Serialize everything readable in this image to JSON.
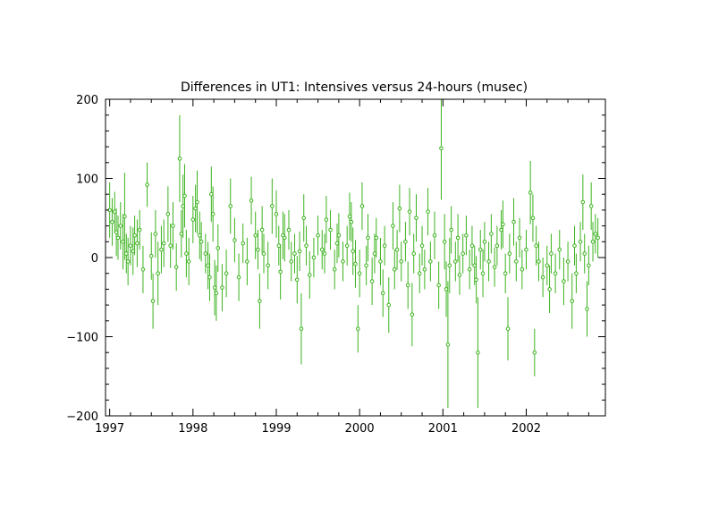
{
  "chart_data": {
    "type": "scatter",
    "title": "Differences in UT1: Intensives versus 24-hours (musec)",
    "xlabel": "",
    "ylabel": "",
    "xlim": [
      1996.95,
      2002.95
    ],
    "ylim": [
      -200,
      200
    ],
    "x_ticks": [
      1997,
      1998,
      1999,
      2000,
      2001,
      2002
    ],
    "y_ticks": [
      -200,
      -100,
      0,
      100,
      200
    ],
    "grid": false,
    "legend": "none",
    "series_color": "#3cb31e",
    "series": [
      {
        "error_bars": true,
        "points": [
          [
            1997.0,
            60,
            35
          ],
          [
            1997.03,
            45,
            30
          ],
          [
            1997.06,
            58,
            25
          ],
          [
            1997.08,
            32,
            30
          ],
          [
            1997.1,
            25,
            28
          ],
          [
            1997.13,
            40,
            30
          ],
          [
            1997.16,
            20,
            35
          ],
          [
            1997.18,
            52,
            55
          ],
          [
            1997.2,
            5,
            25
          ],
          [
            1997.22,
            -5,
            30
          ],
          [
            1997.25,
            15,
            25
          ],
          [
            1997.28,
            8,
            30
          ],
          [
            1997.3,
            28,
            25
          ],
          [
            1997.33,
            18,
            30
          ],
          [
            1997.36,
            35,
            25
          ],
          [
            1997.4,
            -15,
            30
          ],
          [
            1997.45,
            92,
            28
          ],
          [
            1997.5,
            2,
            30
          ],
          [
            1997.52,
            -55,
            35
          ],
          [
            1997.55,
            30,
            30
          ],
          [
            1997.58,
            -20,
            40
          ],
          [
            1997.62,
            10,
            30
          ],
          [
            1997.65,
            18,
            30
          ],
          [
            1997.7,
            55,
            35
          ],
          [
            1997.73,
            15,
            28
          ],
          [
            1997.76,
            40,
            30
          ],
          [
            1997.8,
            -12,
            30
          ],
          [
            1997.84,
            125,
            55
          ],
          [
            1997.86,
            30,
            30
          ],
          [
            1997.88,
            65,
            40
          ],
          [
            1997.9,
            78,
            40
          ],
          [
            1997.92,
            5,
            30
          ],
          [
            1997.95,
            -5,
            30
          ],
          [
            1998.0,
            48,
            30
          ],
          [
            1998.03,
            62,
            30
          ],
          [
            1998.05,
            70,
            40
          ],
          [
            1998.08,
            28,
            30
          ],
          [
            1998.1,
            20,
            25
          ],
          [
            1998.15,
            5,
            25
          ],
          [
            1998.18,
            -10,
            30
          ],
          [
            1998.2,
            -25,
            30
          ],
          [
            1998.22,
            80,
            35
          ],
          [
            1998.24,
            55,
            35
          ],
          [
            1998.26,
            -38,
            35
          ],
          [
            1998.28,
            -45,
            35
          ],
          [
            1998.3,
            12,
            30
          ],
          [
            1998.35,
            -38,
            30
          ],
          [
            1998.4,
            -20,
            30
          ],
          [
            1998.45,
            65,
            35
          ],
          [
            1998.5,
            22,
            28
          ],
          [
            1998.55,
            -25,
            30
          ],
          [
            1998.6,
            18,
            25
          ],
          [
            1998.65,
            -5,
            30
          ],
          [
            1998.7,
            72,
            30
          ],
          [
            1998.75,
            28,
            30
          ],
          [
            1998.78,
            10,
            25
          ],
          [
            1998.8,
            -55,
            35
          ],
          [
            1998.83,
            35,
            30
          ],
          [
            1998.85,
            5,
            25
          ],
          [
            1998.9,
            -10,
            30
          ],
          [
            1998.95,
            65,
            35
          ],
          [
            1999.0,
            55,
            30
          ],
          [
            1999.03,
            15,
            25
          ],
          [
            1999.05,
            -18,
            35
          ],
          [
            1999.08,
            28,
            30
          ],
          [
            1999.1,
            25,
            30
          ],
          [
            1999.15,
            35,
            25
          ],
          [
            1999.18,
            -5,
            25
          ],
          [
            1999.22,
            5,
            25
          ],
          [
            1999.25,
            -28,
            30
          ],
          [
            1999.28,
            8,
            25
          ],
          [
            1999.3,
            -90,
            45
          ],
          [
            1999.33,
            50,
            30
          ],
          [
            1999.36,
            15,
            25
          ],
          [
            1999.4,
            -22,
            30
          ],
          [
            1999.45,
            0,
            25
          ],
          [
            1999.5,
            28,
            25
          ],
          [
            1999.55,
            10,
            25
          ],
          [
            1999.58,
            5,
            25
          ],
          [
            1999.6,
            48,
            30
          ],
          [
            1999.65,
            35,
            25
          ],
          [
            1999.7,
            -15,
            25
          ],
          [
            1999.73,
            18,
            25
          ],
          [
            1999.75,
            28,
            28
          ],
          [
            1999.8,
            -5,
            25
          ],
          [
            1999.85,
            15,
            25
          ],
          [
            1999.88,
            52,
            30
          ],
          [
            1999.9,
            45,
            25
          ],
          [
            1999.92,
            8,
            30
          ],
          [
            1999.95,
            -8,
            30
          ],
          [
            1999.98,
            -90,
            30
          ],
          [
            2000.0,
            -20,
            30
          ],
          [
            2000.03,
            65,
            30
          ],
          [
            2000.08,
            -10,
            25
          ],
          [
            2000.1,
            25,
            30
          ],
          [
            2000.15,
            -30,
            30
          ],
          [
            2000.18,
            5,
            25
          ],
          [
            2000.2,
            25,
            25
          ],
          [
            2000.25,
            -5,
            30
          ],
          [
            2000.28,
            -45,
            30
          ],
          [
            2000.3,
            15,
            25
          ],
          [
            2000.35,
            -60,
            35
          ],
          [
            2000.4,
            40,
            30
          ],
          [
            2000.42,
            -15,
            25
          ],
          [
            2000.45,
            10,
            25
          ],
          [
            2000.48,
            62,
            30
          ],
          [
            2000.5,
            -5,
            25
          ],
          [
            2000.55,
            20,
            25
          ],
          [
            2000.58,
            -35,
            30
          ],
          [
            2000.6,
            58,
            30
          ],
          [
            2000.63,
            -72,
            40
          ],
          [
            2000.65,
            5,
            25
          ],
          [
            2000.68,
            50,
            30
          ],
          [
            2000.72,
            -20,
            25
          ],
          [
            2000.75,
            15,
            25
          ],
          [
            2000.78,
            -15,
            25
          ],
          [
            2000.82,
            58,
            30
          ],
          [
            2000.85,
            -5,
            25
          ],
          [
            2000.9,
            28,
            30
          ],
          [
            2000.95,
            -35,
            30
          ],
          [
            2000.98,
            138,
            65
          ],
          [
            2001.02,
            20,
            35
          ],
          [
            2001.04,
            -40,
            35
          ],
          [
            2001.06,
            -110,
            80
          ],
          [
            2001.08,
            -10,
            35
          ],
          [
            2001.1,
            35,
            30
          ],
          [
            2001.15,
            -5,
            25
          ],
          [
            2001.18,
            25,
            30
          ],
          [
            2001.2,
            -22,
            25
          ],
          [
            2001.24,
            5,
            25
          ],
          [
            2001.28,
            28,
            25
          ],
          [
            2001.32,
            -15,
            25
          ],
          [
            2001.35,
            15,
            25
          ],
          [
            2001.38,
            -10,
            25
          ],
          [
            2001.4,
            -28,
            30
          ],
          [
            2001.42,
            -120,
            70
          ],
          [
            2001.45,
            10,
            25
          ],
          [
            2001.48,
            -20,
            30
          ],
          [
            2001.5,
            20,
            25
          ],
          [
            2001.55,
            -5,
            25
          ],
          [
            2001.58,
            30,
            25
          ],
          [
            2001.62,
            -12,
            25
          ],
          [
            2001.65,
            15,
            25
          ],
          [
            2001.7,
            35,
            25
          ],
          [
            2001.72,
            42,
            30
          ],
          [
            2001.75,
            -20,
            25
          ],
          [
            2001.78,
            -90,
            40
          ],
          [
            2001.8,
            5,
            25
          ],
          [
            2001.85,
            45,
            30
          ],
          [
            2001.88,
            -5,
            25
          ],
          [
            2001.92,
            25,
            25
          ],
          [
            2001.95,
            -15,
            25
          ],
          [
            2002.0,
            10,
            25
          ],
          [
            2002.05,
            82,
            40
          ],
          [
            2002.08,
            50,
            30
          ],
          [
            2002.1,
            -120,
            30
          ],
          [
            2002.12,
            15,
            25
          ],
          [
            2002.15,
            -5,
            25
          ],
          [
            2002.2,
            -25,
            25
          ],
          [
            2002.25,
            -10,
            25
          ],
          [
            2002.28,
            -40,
            30
          ],
          [
            2002.3,
            5,
            25
          ],
          [
            2002.35,
            -20,
            25
          ],
          [
            2002.4,
            10,
            25
          ],
          [
            2002.45,
            -30,
            30
          ],
          [
            2002.5,
            -5,
            25
          ],
          [
            2002.55,
            -55,
            35
          ],
          [
            2002.58,
            15,
            25
          ],
          [
            2002.6,
            -20,
            25
          ],
          [
            2002.65,
            20,
            25
          ],
          [
            2002.68,
            70,
            35
          ],
          [
            2002.7,
            5,
            25
          ],
          [
            2002.73,
            -65,
            35
          ],
          [
            2002.75,
            -10,
            25
          ],
          [
            2002.78,
            65,
            30
          ],
          [
            2002.8,
            20,
            25
          ],
          [
            2002.83,
            30,
            25
          ],
          [
            2002.86,
            25,
            25
          ]
        ]
      }
    ]
  }
}
